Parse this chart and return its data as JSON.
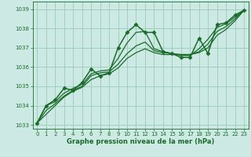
{
  "bg_color": "#cce9e4",
  "grid_color": "#99ccbb",
  "line_color": "#1a6b2a",
  "xlabel": "Graphe pression niveau de la mer (hPa)",
  "ylim": [
    1032.8,
    1039.4
  ],
  "xlim": [
    -0.5,
    23.5
  ],
  "yticks": [
    1033,
    1034,
    1035,
    1036,
    1037,
    1038,
    1039
  ],
  "xticks": [
    0,
    1,
    2,
    3,
    4,
    5,
    6,
    7,
    8,
    9,
    10,
    11,
    12,
    13,
    14,
    15,
    16,
    17,
    18,
    19,
    20,
    21,
    22,
    23
  ],
  "series": [
    {
      "x": [
        0,
        1,
        2,
        3,
        4,
        5,
        6,
        7,
        8,
        9,
        10,
        11,
        12,
        13,
        14,
        15,
        16,
        17,
        18,
        19,
        20,
        21,
        22,
        23
      ],
      "y": [
        1033.1,
        1034.0,
        1034.3,
        1034.9,
        1034.8,
        1035.2,
        1035.9,
        1035.55,
        1035.7,
        1037.0,
        1037.8,
        1038.2,
        1037.8,
        1037.8,
        1036.8,
        1036.7,
        1036.5,
        1036.5,
        1037.5,
        1036.7,
        1038.2,
        1038.3,
        1038.7,
        1038.95
      ],
      "marker": "D",
      "markersize": 2.5,
      "linewidth": 1.1
    },
    {
      "x": [
        0,
        1,
        2,
        3,
        4,
        5,
        6,
        7,
        8,
        9,
        10,
        11,
        12,
        13,
        14,
        15,
        16,
        17,
        18,
        19,
        20,
        21,
        22,
        23
      ],
      "y": [
        1033.1,
        1033.55,
        1034.0,
        1034.45,
        1034.75,
        1034.95,
        1035.35,
        1035.55,
        1035.65,
        1035.95,
        1036.45,
        1036.75,
        1036.95,
        1036.75,
        1036.65,
        1036.65,
        1036.65,
        1036.65,
        1036.75,
        1037.0,
        1037.65,
        1037.95,
        1038.4,
        1038.95
      ],
      "marker": null,
      "markersize": 0,
      "linewidth": 0.9
    },
    {
      "x": [
        0,
        1,
        2,
        3,
        4,
        5,
        6,
        7,
        8,
        9,
        10,
        11,
        12,
        13,
        14,
        15,
        16,
        17,
        18,
        19,
        20,
        21,
        22,
        23
      ],
      "y": [
        1033.1,
        1033.75,
        1034.1,
        1034.5,
        1034.8,
        1035.0,
        1035.55,
        1035.7,
        1035.75,
        1036.15,
        1036.7,
        1037.1,
        1037.3,
        1036.85,
        1036.75,
        1036.7,
        1036.65,
        1036.65,
        1036.8,
        1037.2,
        1037.85,
        1038.1,
        1038.5,
        1038.95
      ],
      "marker": null,
      "markersize": 0,
      "linewidth": 0.9
    },
    {
      "x": [
        0,
        1,
        2,
        3,
        4,
        5,
        6,
        7,
        8,
        9,
        10,
        11,
        12,
        13,
        14,
        15,
        16,
        17,
        18,
        19,
        20,
        21,
        22,
        23
      ],
      "y": [
        1033.1,
        1034.0,
        1034.2,
        1034.65,
        1034.9,
        1035.1,
        1035.65,
        1035.8,
        1035.85,
        1036.45,
        1037.25,
        1037.8,
        1037.85,
        1036.95,
        1036.8,
        1036.7,
        1036.6,
        1036.6,
        1036.95,
        1037.45,
        1038.05,
        1038.25,
        1038.6,
        1038.95
      ],
      "marker": null,
      "markersize": 0,
      "linewidth": 0.9
    }
  ],
  "tick_fontsize": 5.0,
  "label_fontsize": 6.0,
  "tick_color": "#1a6b2a",
  "label_color": "#1a6b2a"
}
